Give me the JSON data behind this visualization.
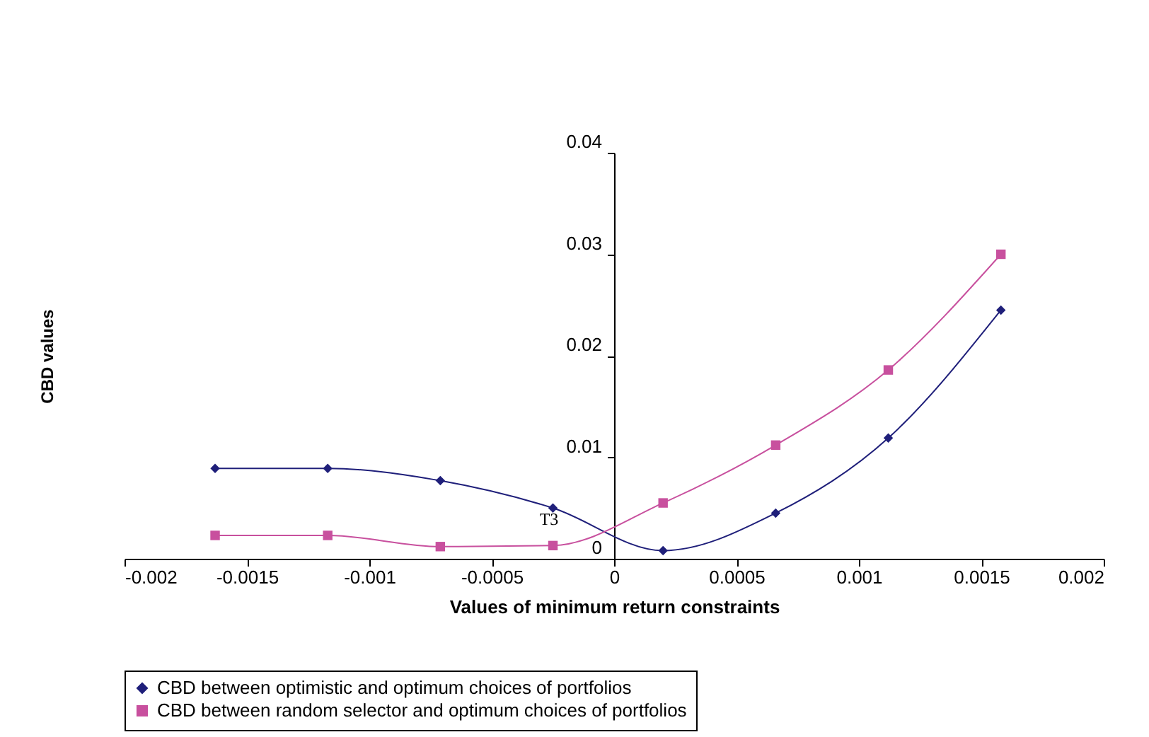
{
  "chart_data": {
    "type": "line",
    "xlabel": "Values of minimum return constraints",
    "ylabel": "CBD values",
    "x": [
      -0.00163,
      -0.00117,
      -0.00071,
      -0.00025,
      0.0002,
      0.00066,
      0.00112,
      0.00158
    ],
    "series": [
      {
        "name": "CBD between  optimistic and optimum choices of portfolios",
        "color": "#1f1f7a",
        "marker": "diamond",
        "values": [
          0.0089,
          0.0089,
          0.0077,
          0.005,
          0.0008,
          0.0045,
          0.0119,
          0.0245
        ]
      },
      {
        "name": "CBD between random selector and optimum choices of portfolios",
        "color": "#c8509e",
        "marker": "square",
        "values": [
          0.0023,
          0.0023,
          0.0012,
          0.0013,
          0.0055,
          0.0112,
          0.0186,
          0.03
        ]
      }
    ],
    "xlim": [
      -0.002,
      0.002
    ],
    "xticks": [
      -0.002,
      -0.0015,
      -0.001,
      -0.0005,
      0,
      0.0005,
      0.001,
      0.0015,
      0.002
    ],
    "ylim": [
      0,
      0.04
    ],
    "yticks": [
      0,
      0.01,
      0.02,
      0.03,
      0.04
    ],
    "annotations": [
      "T3"
    ],
    "legend": "bottom",
    "grid": false
  }
}
